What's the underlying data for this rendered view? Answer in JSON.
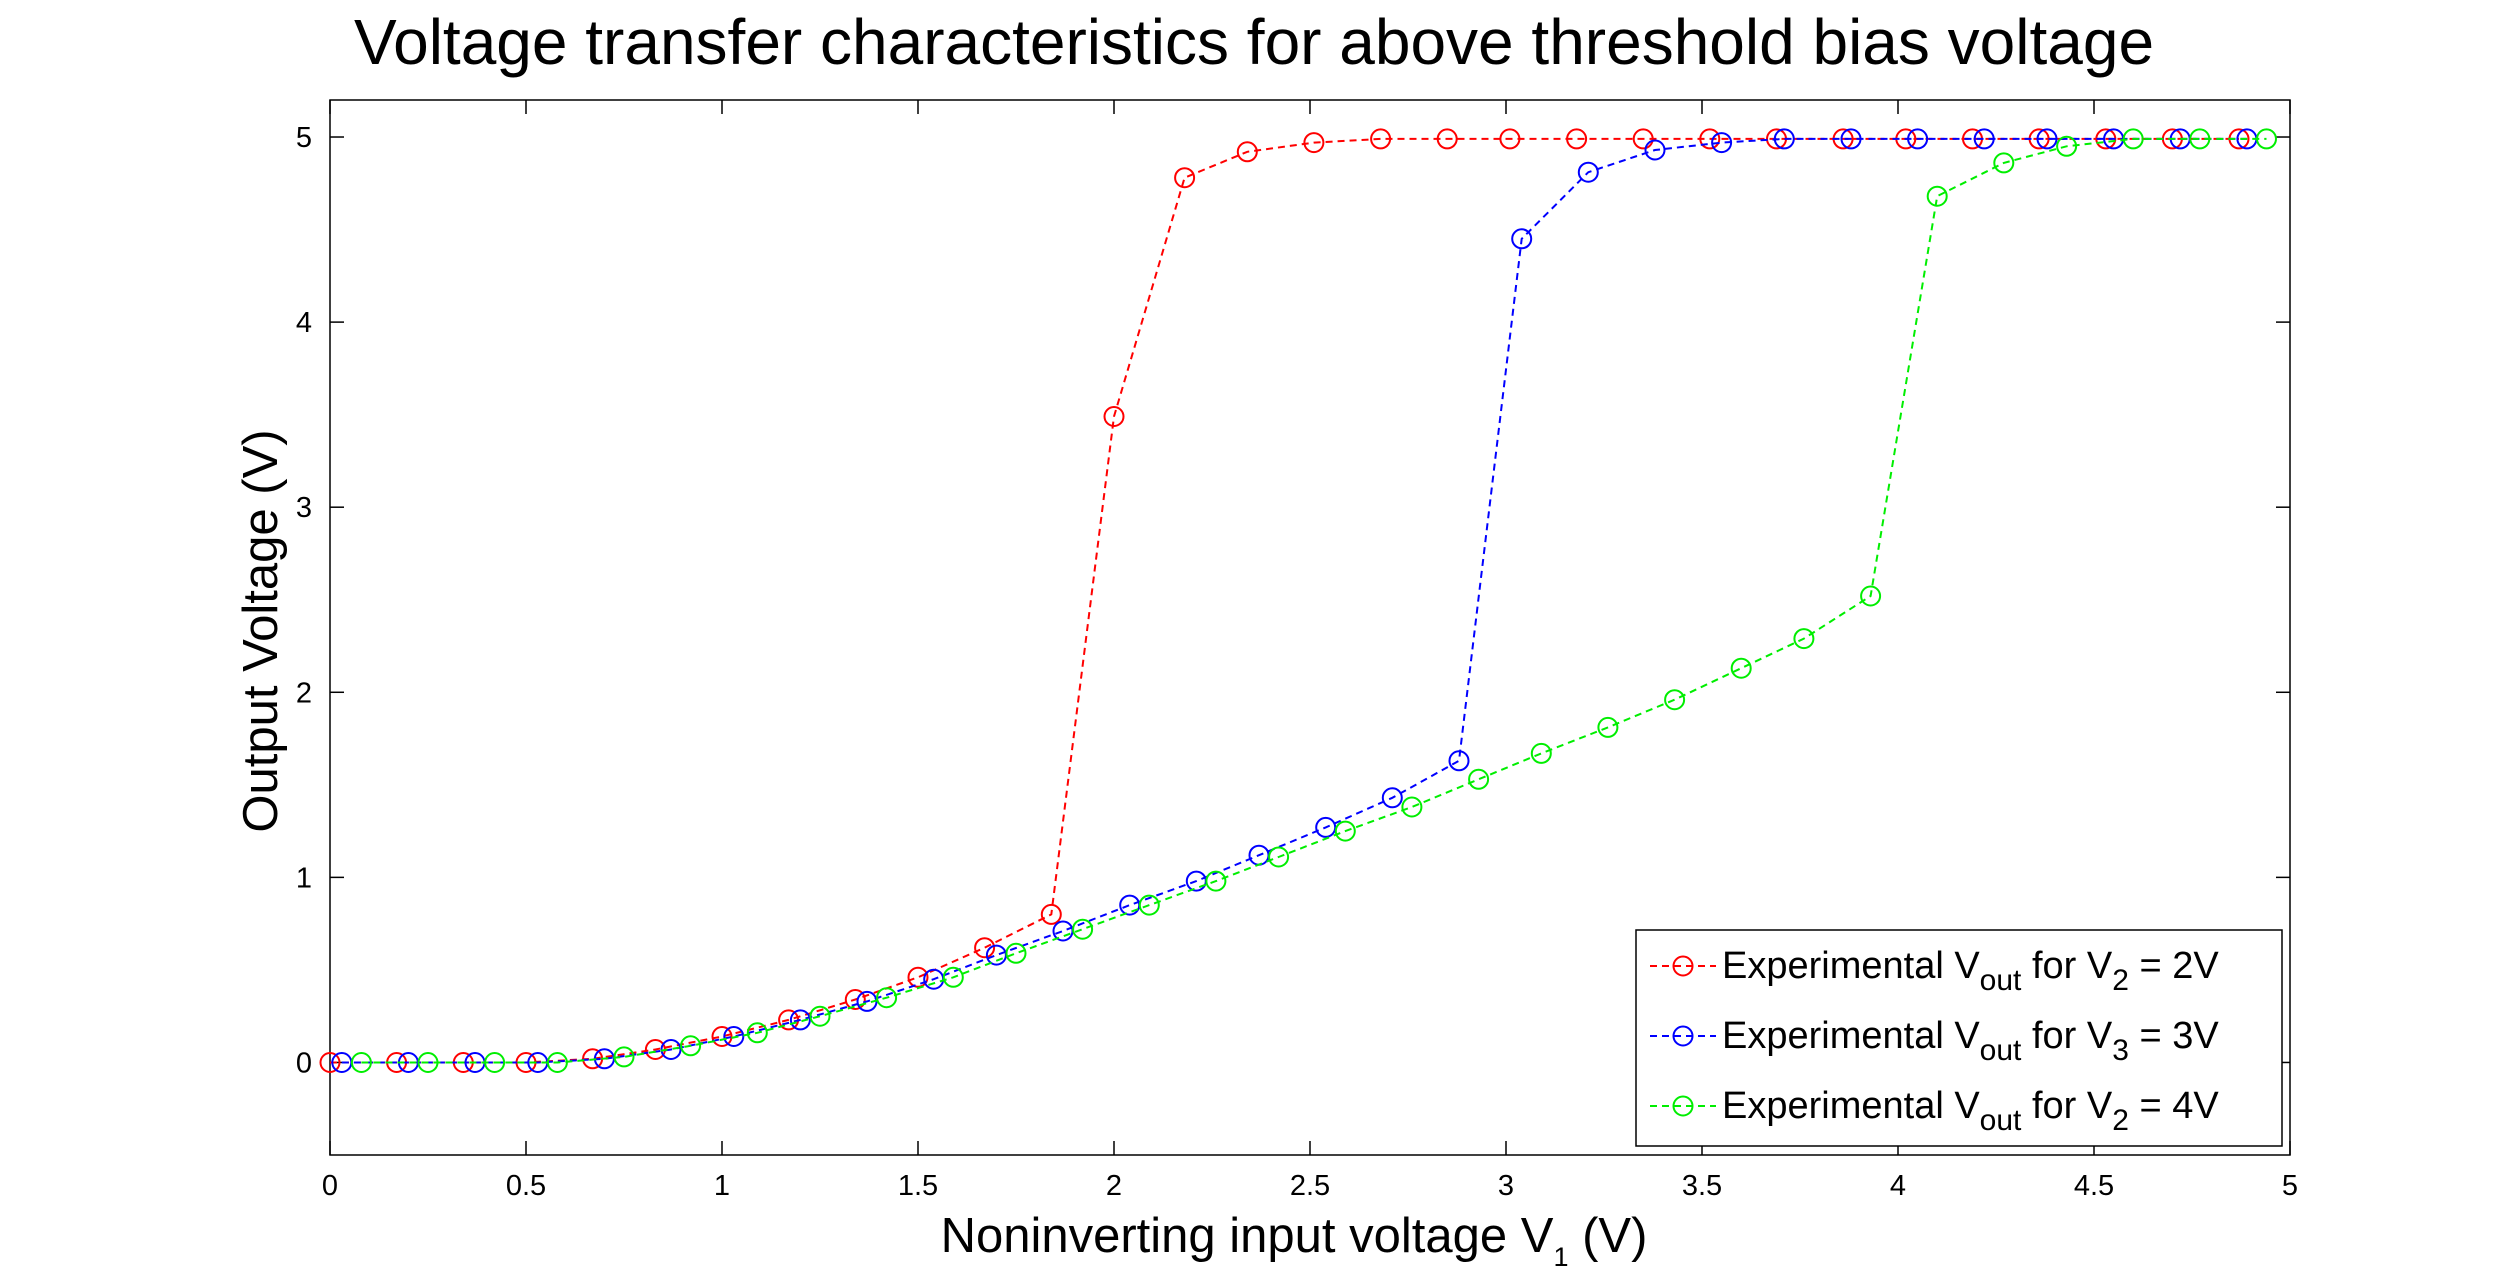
{
  "chart_data": {
    "type": "line",
    "title": "Voltage transfer characteristics for above threshold bias voltage",
    "xlabel": {
      "text": "Noninverting input voltage V",
      "sub": "1",
      "suffix": " (V)"
    },
    "ylabel": "Output Voltage (V)",
    "xlim": [
      0,
      5
    ],
    "ylim": [
      -0.5,
      5.2
    ],
    "xticks": [
      "0",
      "0.5",
      "1",
      "1.5",
      "2",
      "2.5",
      "3",
      "3.5",
      "4",
      "4.5",
      "5"
    ],
    "yticks": [
      "0",
      "1",
      "2",
      "3",
      "4",
      "5"
    ],
    "grid": false,
    "legend_position": "bottom-right",
    "series": [
      {
        "name": {
          "a": "Experimental V",
          "sub1": "out",
          "b": " for V",
          "sub2": "2",
          "c": " = 2V"
        },
        "color": "#ff0000",
        "x": [
          0.0,
          0.17,
          0.34,
          0.5,
          0.67,
          0.83,
          1.0,
          1.17,
          1.34,
          1.5,
          1.67,
          1.84,
          2.0,
          2.18,
          2.34,
          2.51,
          2.68,
          2.85,
          3.01,
          3.18,
          3.35,
          3.52,
          3.69,
          3.86,
          4.02,
          4.19,
          4.36,
          4.53,
          4.7,
          4.87
        ],
        "y": [
          0.0,
          0.0,
          0.0,
          0.0,
          0.02,
          0.07,
          0.14,
          0.23,
          0.34,
          0.46,
          0.62,
          0.8,
          3.49,
          4.78,
          4.92,
          4.97,
          4.99,
          4.99,
          4.99,
          4.99,
          4.99,
          4.99,
          4.99,
          4.99,
          4.99,
          4.99,
          4.99,
          4.99,
          4.99,
          4.99
        ]
      },
      {
        "name": {
          "a": "Experimental V",
          "sub1": "out",
          "b": " for V",
          "sub2": "3",
          "c": " = 3V"
        },
        "color": "#0000ff",
        "x": [
          0.03,
          0.2,
          0.37,
          0.53,
          0.7,
          0.87,
          1.03,
          1.2,
          1.37,
          1.54,
          1.7,
          1.87,
          2.04,
          2.21,
          2.37,
          2.54,
          2.71,
          2.88,
          3.04,
          3.21,
          3.38,
          3.55,
          3.71,
          3.88,
          4.05,
          4.22,
          4.38,
          4.55,
          4.72,
          4.89
        ],
        "y": [
          0.0,
          0.0,
          0.0,
          0.0,
          0.02,
          0.07,
          0.14,
          0.23,
          0.33,
          0.45,
          0.58,
          0.71,
          0.85,
          0.98,
          1.12,
          1.27,
          1.43,
          1.63,
          4.45,
          4.81,
          4.93,
          4.97,
          4.99,
          4.99,
          4.99,
          4.99,
          4.99,
          4.99,
          4.99,
          4.99
        ]
      },
      {
        "name": {
          "a": "Experimental V",
          "sub1": "out",
          "b": " for V",
          "sub2": "2",
          "c": " = 4V"
        },
        "color": "#00ee00",
        "x": [
          0.08,
          0.25,
          0.42,
          0.58,
          0.75,
          0.92,
          1.09,
          1.25,
          1.42,
          1.59,
          1.75,
          1.92,
          2.09,
          2.26,
          2.42,
          2.59,
          2.76,
          2.93,
          3.09,
          3.26,
          3.43,
          3.6,
          3.76,
          3.93,
          4.1,
          4.27,
          4.43,
          4.6,
          4.77,
          4.94
        ],
        "y": [
          0.0,
          0.0,
          0.0,
          0.0,
          0.03,
          0.09,
          0.16,
          0.25,
          0.35,
          0.46,
          0.59,
          0.72,
          0.85,
          0.98,
          1.11,
          1.25,
          1.38,
          1.53,
          1.67,
          1.81,
          1.96,
          2.13,
          2.29,
          2.52,
          4.68,
          4.86,
          4.95,
          4.99,
          4.99,
          4.99
        ]
      }
    ]
  }
}
